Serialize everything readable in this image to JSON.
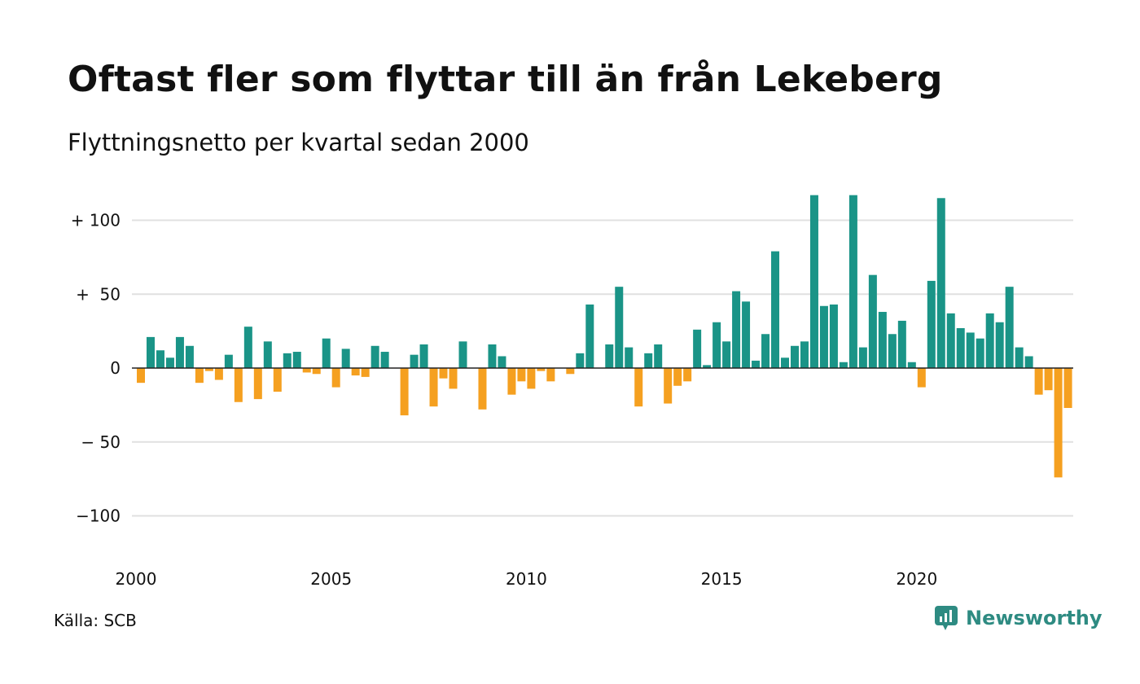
{
  "title": "Oftast fler som flyttar till än från Lekeberg",
  "subtitle": "Flyttningsnetto per kvartal sedan 2000",
  "source": "Källa: SCB",
  "brand": {
    "name": "Newsworthy",
    "icon": "newsworthy-logo-icon"
  },
  "colors": {
    "positive": "#1a9487",
    "negative": "#f5a020",
    "grid": "#e0e0e0",
    "zero": "#222222"
  },
  "chart_data": {
    "type": "bar",
    "x_start": 2000,
    "quarters_per_year": 4,
    "x_ticks": [
      "2000",
      "2005",
      "2010",
      "2015",
      "2020"
    ],
    "y_ticks": [
      {
        "value": 100,
        "label": "+ 100"
      },
      {
        "value": 50,
        "label": "+  50"
      },
      {
        "value": 0,
        "label": "0"
      },
      {
        "value": -50,
        "label": "− 50"
      },
      {
        "value": -100,
        "label": "−100"
      }
    ],
    "ylim": [
      -120,
      120
    ],
    "grid": true,
    "values": [
      -10,
      21,
      12,
      7,
      21,
      15,
      -10,
      -2,
      -8,
      9,
      -23,
      28,
      -21,
      18,
      -16,
      10,
      11,
      -3,
      -4,
      20,
      -13,
      13,
      -5,
      -6,
      15,
      11,
      0,
      -32,
      9,
      16,
      -26,
      -7,
      -14,
      18,
      0,
      -28,
      16,
      8,
      -18,
      -9,
      -14,
      -2,
      -9,
      0,
      -4,
      10,
      43,
      0,
      16,
      55,
      14,
      -26,
      10,
      16,
      -24,
      -12,
      -9,
      26,
      2,
      31,
      18,
      52,
      45,
      5,
      23,
      79,
      7,
      15,
      18,
      117,
      42,
      43,
      4,
      117,
      14,
      63,
      38,
      23,
      32,
      4,
      -13,
      59,
      115,
      37,
      27,
      24,
      20,
      37,
      31,
      55,
      14,
      8,
      -18,
      -15,
      -74,
      -27
    ]
  }
}
